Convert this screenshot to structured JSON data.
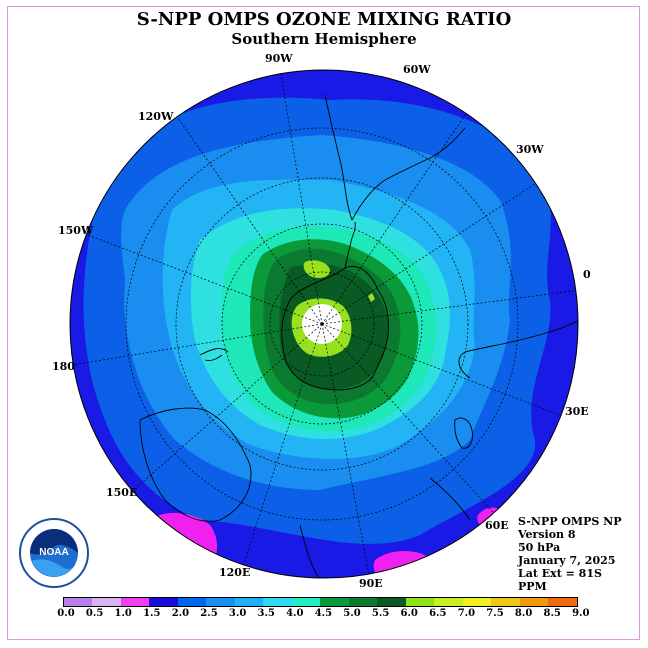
{
  "title": "S-NPP OMPS OZONE MIXING RATIO",
  "subtitle": "Southern Hemisphere",
  "longitude_labels": {
    "w90": "90W",
    "w60": "60W",
    "w120": "120W",
    "w30": "30W",
    "w150": "150W",
    "e0": "0",
    "l180": "180",
    "e30": "30E",
    "e150": "150E",
    "e60": "60E",
    "e120": "120E",
    "e90": "90E"
  },
  "info": {
    "instrument": "S-NPP OMPS NP",
    "version": "Version 8",
    "level": "50 hPa",
    "date": "January 7, 2025",
    "lat_ext": "Lat Ext = 81S",
    "units": "PPM"
  },
  "logo": {
    "text": "NOAA"
  },
  "colorbar": {
    "colors": [
      "#b57fef",
      "#d8b3f0",
      "#f040f0",
      "#1a0cdc",
      "#0066ee",
      "#1a90f0",
      "#20b0f5",
      "#30d8f0",
      "#20f0c8",
      "#0a9c3c",
      "#0b7a30",
      "#0a5a24",
      "#90e01a",
      "#c8f020",
      "#f0f020",
      "#f0c818",
      "#f09a10",
      "#f06a10",
      "#ee1010",
      "#8b5a3a"
    ],
    "labels": [
      "0.0",
      "0.5",
      "1.0",
      "1.5",
      "2.0",
      "2.5",
      "3.0",
      "3.5",
      "4.0",
      "4.5",
      "5.0",
      "5.5",
      "6.0",
      "6.5",
      "7.0",
      "7.5",
      "8.0",
      "8.5",
      "9.0"
    ]
  },
  "colors": {
    "ocean_deep": "#1a1ae6",
    "band_2": "#0c60e8",
    "band_25": "#1a8ef0",
    "band_3": "#22b4f4",
    "band_35": "#2ee0e0",
    "band_4": "#1ee8b8",
    "band_45": "#0a9a3a",
    "band_5": "#0b7a30",
    "band_55": "#0a5a24",
    "band_6": "#98e020",
    "hole": "#ffffff",
    "magenta": "#f020f0"
  }
}
